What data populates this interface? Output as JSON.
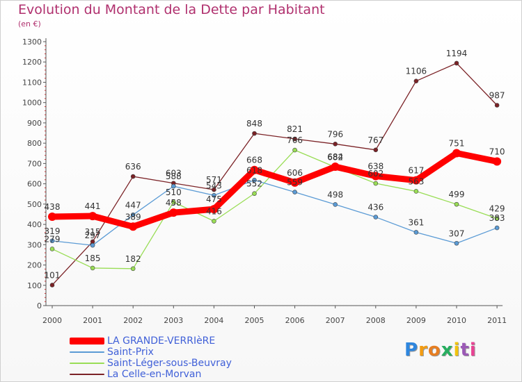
{
  "title": "Evolution du Montant de la Dette par Habitant",
  "subtitle": "(en €)",
  "logo_text": "Proxiti",
  "chart_data": {
    "type": "line",
    "title": "Evolution du Montant de la Dette par Habitant",
    "ylabel": "(en €)",
    "xlabel": "",
    "ylim": [
      0,
      1300
    ],
    "yticks": [
      0,
      100,
      200,
      300,
      400,
      500,
      600,
      700,
      800,
      900,
      1000,
      1100,
      1200,
      1300
    ],
    "grid": false,
    "legend_position": "bottom-left",
    "categories": [
      "2000",
      "2001",
      "2002",
      "2003",
      "2004",
      "2005",
      "2006",
      "2007",
      "2008",
      "2009",
      "2010",
      "2011"
    ],
    "series": [
      {
        "name": "LA GRANDE-VERRIèRE",
        "color": "#ff0000",
        "values": [
          438,
          441,
          389,
          458,
          475,
          668,
          606,
          684,
          638,
          617,
          751,
          710
        ]
      },
      {
        "name": "Saint-Prix",
        "color": "#5b9bd5",
        "values": [
          319,
          297,
          447,
          588,
          543,
          618,
          559,
          498,
          436,
          361,
          307,
          383
        ]
      },
      {
        "name": "Saint-Léger-sous-Beuvray",
        "color": "#99dd55",
        "values": [
          279,
          185,
          182,
          510,
          416,
          552,
          766,
          682,
          602,
          563,
          499,
          429
        ]
      },
      {
        "name": "La Celle-en-Morvan",
        "color": "#7b2226",
        "values": [
          101,
          315,
          636,
          603,
          571,
          848,
          821,
          796,
          767,
          1106,
          1194,
          987
        ]
      }
    ]
  }
}
